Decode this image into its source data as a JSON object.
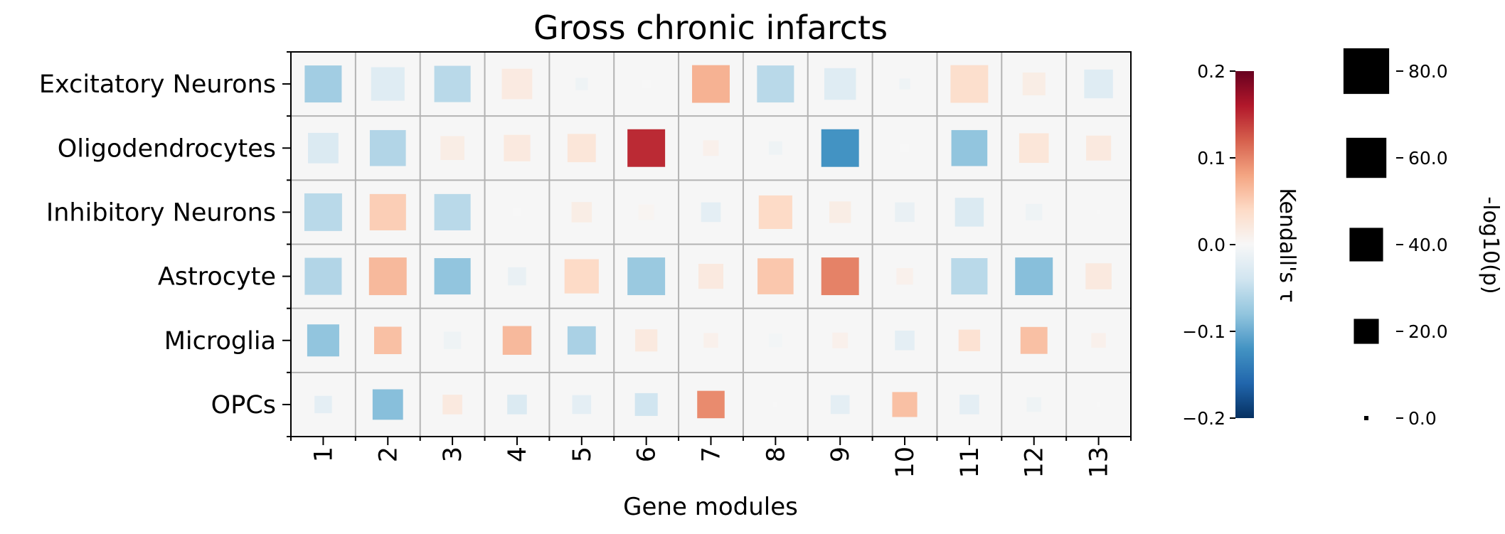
{
  "chart_data": {
    "type": "heatmap",
    "title": "Gross chronic infarcts",
    "xlabel": "Gene modules",
    "categories_x": [
      "1",
      "2",
      "3",
      "4",
      "5",
      "6",
      "7",
      "8",
      "9",
      "10",
      "11",
      "12",
      "13"
    ],
    "categories_y": [
      "Excitatory Neurons",
      "Oligodendrocytes",
      "Inhibitory Neurons",
      "Astrocyte",
      "Microglia",
      "OPCs"
    ],
    "color_label": "Kendall's τ",
    "color_range": [
      -0.2,
      0.2
    ],
    "color_ticks": [
      "0.2",
      "0.1",
      "0.0",
      "−0.1",
      "−0.2"
    ],
    "size_label": "-log10(p)",
    "size_range": [
      0,
      85
    ],
    "size_ticks": [
      "80.0",
      "60.0",
      "40.0",
      "20.0",
      "0.0"
    ],
    "size_tick_values": [
      80,
      60,
      40,
      20,
      0
    ],
    "tau": [
      [
        -0.07,
        -0.025,
        -0.055,
        0.018,
        -0.01,
        0.0,
        0.07,
        -0.055,
        -0.025,
        -0.01,
        0.035,
        0.015,
        -0.025
      ],
      [
        -0.03,
        -0.06,
        0.015,
        0.02,
        0.025,
        0.15,
        0.01,
        -0.01,
        -0.12,
        0.0,
        -0.08,
        0.025,
        0.02
      ],
      [
        -0.055,
        0.05,
        -0.055,
        0.0,
        0.015,
        0.005,
        -0.02,
        0.04,
        0.015,
        -0.015,
        -0.03,
        -0.01,
        0.0
      ],
      [
        -0.06,
        0.065,
        -0.08,
        -0.015,
        0.04,
        -0.075,
        0.02,
        0.055,
        0.1,
        0.01,
        -0.055,
        -0.085,
        0.02
      ],
      [
        -0.08,
        0.06,
        -0.01,
        0.065,
        -0.065,
        0.02,
        0.01,
        -0.005,
        0.01,
        -0.02,
        0.03,
        0.06,
        0.01
      ],
      [
        -0.02,
        -0.085,
        0.02,
        -0.03,
        -0.02,
        -0.04,
        0.095,
        0.0,
        -0.02,
        0.06,
        -0.02,
        -0.01,
        0.0
      ]
    ],
    "neglog10p": [
      [
        50,
        40,
        48,
        32,
        3,
        1,
        52,
        50,
        35,
        2,
        52,
        16,
        28
      ],
      [
        32,
        47,
        18,
        23,
        27,
        52,
        6,
        4,
        52,
        1,
        47,
        30,
        20
      ],
      [
        52,
        48,
        48,
        1,
        12,
        6,
        11,
        40,
        14,
        11,
        28,
        7,
        0
      ],
      [
        50,
        52,
        48,
        9,
        42,
        52,
        20,
        47,
        52,
        7,
        48,
        52,
        22
      ],
      [
        36,
        25,
        8,
        28,
        27,
        15,
        5,
        4,
        6,
        11,
        14,
        24,
        5
      ],
      [
        8,
        32,
        11,
        11,
        10,
        16,
        25,
        0,
        10,
        20,
        11,
        5,
        0
      ]
    ]
  }
}
